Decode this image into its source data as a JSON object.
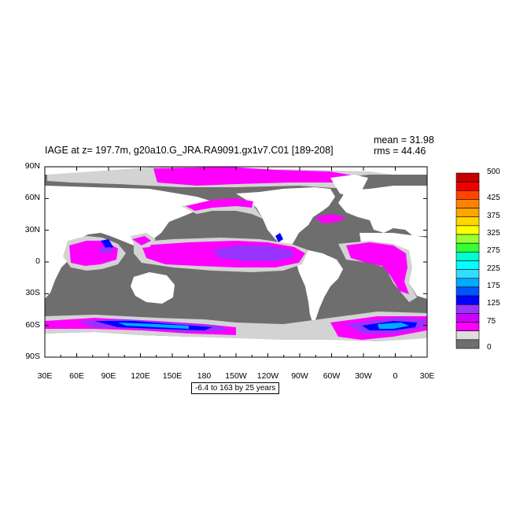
{
  "title": "IAGE at z= 197.7m, g20a10.G_JRA.RA9091.gx1v7.C01 [189-208]",
  "stats": {
    "mean": "mean = 31.98",
    "rms": "rms = 44.46"
  },
  "range_label": "-6.4 to 163 by 25 years",
  "lat_labels": [
    "90N",
    "60N",
    "30N",
    "0",
    "30S",
    "60S",
    "90S"
  ],
  "lon_labels": [
    "30E",
    "60E",
    "90E",
    "120E",
    "150E",
    "180",
    "150W",
    "120W",
    "90W",
    "60W",
    "30W",
    "0",
    "30E"
  ],
  "colorbar": {
    "labels": [
      "500",
      "425",
      "375",
      "325",
      "275",
      "225",
      "175",
      "125",
      "75",
      "0"
    ],
    "colors": [
      "#c80000",
      "#ee0000",
      "#ff4500",
      "#ff8200",
      "#ffa500",
      "#ffd700",
      "#ffff00",
      "#99ff33",
      "#33ff33",
      "#00ffcc",
      "#00ffff",
      "#33ddff",
      "#00aaff",
      "#0055ff",
      "#0000ff",
      "#9933ff",
      "#cc00ff",
      "#ff00ff",
      "#dddddd",
      "#6e6e6e"
    ]
  },
  "map_colors": {
    "ocean_old": "#6e6e6e",
    "ocean_young": "#ff00ff",
    "ocean_mid": "#cc00ff",
    "ocean_violet": "#9933ff",
    "ocean_blue": "#0000ff",
    "ocean_cyan": "#00aaff",
    "light_gray": "#d3d3d3",
    "land": "#ffffff"
  }
}
